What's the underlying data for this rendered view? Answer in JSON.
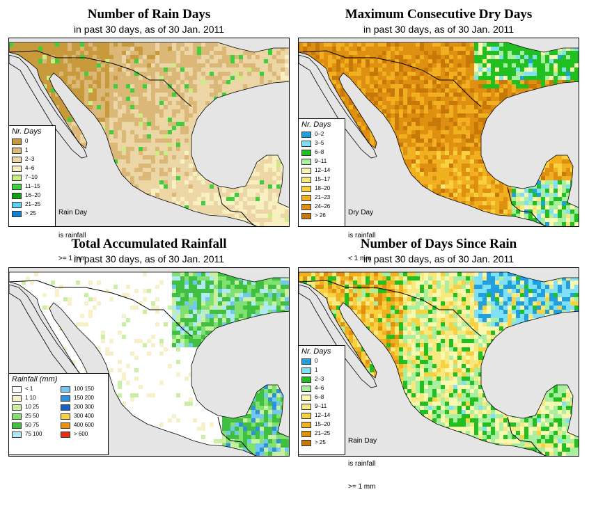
{
  "panels": [
    {
      "title": "Number of Rain Days",
      "subtitle": "in past 30 days, as of  30 Jan. 2011",
      "legend_title": "Nr. Days",
      "legend": [
        {
          "label": "0",
          "color": "#c89a3c"
        },
        {
          "label": "1",
          "color": "#dcb878"
        },
        {
          "label": "2–3",
          "color": "#ecd6a6"
        },
        {
          "label": "4–6",
          "color": "#f8f0c0"
        },
        {
          "label": "7–10",
          "color": "#c8f080"
        },
        {
          "label": "11–15",
          "color": "#3cd03c"
        },
        {
          "label": "16–20",
          "color": "#10a010"
        },
        {
          "label": "21–25",
          "color": "#60d0f0"
        },
        {
          "label": "> 25",
          "color": "#1080d0"
        }
      ],
      "note": [
        "Rain Day",
        "is rainfall",
        ">= 1 mm"
      ]
    },
    {
      "title": "Maximum Consecutive Dry Days",
      "subtitle": "in past 30 days, as of  30 Jan. 2011",
      "legend_title": "Nr. Days",
      "legend": [
        {
          "label": "0–2",
          "color": "#20a0e0"
        },
        {
          "label": "3–5",
          "color": "#80e0f8"
        },
        {
          "label": "6–8",
          "color": "#20c020"
        },
        {
          "label": "9–11",
          "color": "#a8f0a0"
        },
        {
          "label": "12–14",
          "color": "#f8f8b0"
        },
        {
          "label": "15–17",
          "color": "#f8e880"
        },
        {
          "label": "18–20",
          "color": "#f8d040"
        },
        {
          "label": "21–23",
          "color": "#f0b020"
        },
        {
          "label": "24–26",
          "color": "#e09010"
        },
        {
          "label": "> 26",
          "color": "#c87808"
        }
      ],
      "note": [
        "Dry Day",
        "is rainfall",
        "< 1 mm"
      ]
    },
    {
      "title": "Total Accumulated Rainfall",
      "subtitle": "in past 30 days, as of  30 Jan. 2011",
      "legend_title": "Rainfall (mm)",
      "legend": [
        {
          "label": "< 1",
          "color": "#ffffff"
        },
        {
          "label": "1     10",
          "color": "#f8f0c8"
        },
        {
          "label": "10    25",
          "color": "#c8f0a0"
        },
        {
          "label": "25    50",
          "color": "#80e070"
        },
        {
          "label": "50    75",
          "color": "#40c040"
        },
        {
          "label": "75   100",
          "color": "#b0e8f8"
        },
        {
          "label": "100   150",
          "color": "#70c8f0"
        },
        {
          "label": "150   200",
          "color": "#3090e0"
        },
        {
          "label": "200   300",
          "color": "#1860c8"
        },
        {
          "label": "300   400",
          "color": "#f8d040"
        },
        {
          "label": "400   600",
          "color": "#f09010"
        },
        {
          "label": "> 600",
          "color": "#e83010"
        }
      ],
      "note": []
    },
    {
      "title": "Number of Days Since Rain",
      "subtitle": "in past 30 days, as of  30 Jan. 2011",
      "legend_title": "Nr. Days",
      "legend": [
        {
          "label": "0",
          "color": "#20a0e0"
        },
        {
          "label": "1",
          "color": "#80e0f8"
        },
        {
          "label": "2–3",
          "color": "#20c020"
        },
        {
          "label": "4–6",
          "color": "#a8f0a0"
        },
        {
          "label": "6–8",
          "color": "#f8f8b0"
        },
        {
          "label": "9–11",
          "color": "#f8e880"
        },
        {
          "label": "12–14",
          "color": "#f8d040"
        },
        {
          "label": "15–20",
          "color": "#f0b020"
        },
        {
          "label": "21–25",
          "color": "#e09010"
        },
        {
          "label": "> 25",
          "color": "#c87808"
        }
      ],
      "note": [
        "Rain Day",
        "is rainfall",
        ">= 1 mm"
      ]
    }
  ],
  "colors": {
    "ocean": "#e5e5e5",
    "border": "#000000"
  }
}
